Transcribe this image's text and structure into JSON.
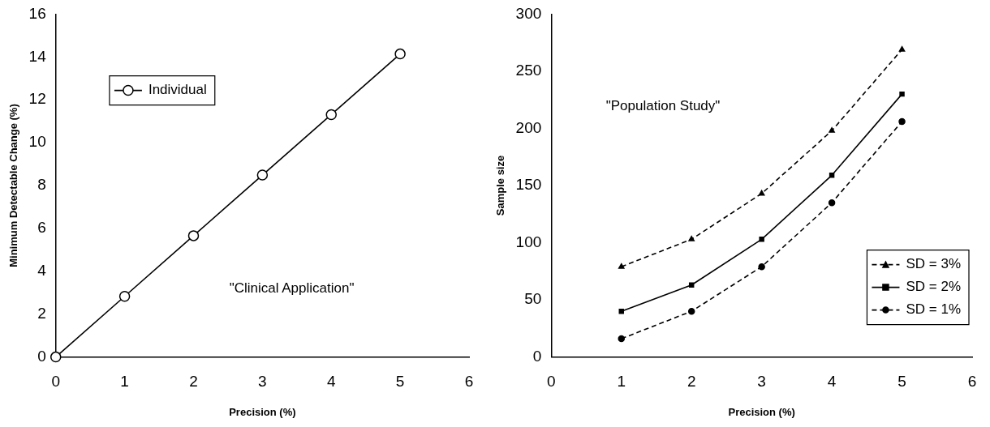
{
  "chart_data": [
    {
      "type": "line",
      "xlabel": "Precision (%)",
      "ylabel": "Minimum Detectable Change (%)",
      "x": [
        0,
        1,
        2,
        3,
        4,
        5
      ],
      "series": [
        {
          "name": "Individual",
          "color": "#000000",
          "values": [
            0,
            2.83,
            5.66,
            8.49,
            11.31,
            14.14
          ],
          "marker": "circle",
          "line_style": "solid"
        }
      ],
      "xlim": [
        0,
        6
      ],
      "xticks": [
        0,
        1,
        2,
        3,
        4,
        5,
        6
      ],
      "ylim": [
        0,
        16
      ],
      "yticks": [
        0,
        2,
        4,
        6,
        8,
        10,
        12,
        14,
        16
      ],
      "grid": false,
      "legend": "top left",
      "annotations": [
        "\"Clinical Application\""
      ]
    },
    {
      "type": "line",
      "xlabel": "Precision (%)",
      "ylabel": "Sample size",
      "x": [
        1,
        2,
        3,
        4,
        5
      ],
      "series": [
        {
          "name": "SD = 3%",
          "color": "#000000",
          "values": [
            79,
            103,
            143,
            198,
            269
          ],
          "marker": "triangle",
          "line_style": "dashed"
        },
        {
          "name": "SD = 2%",
          "color": "#000000",
          "values": [
            40,
            63,
            103,
            159,
            230
          ],
          "marker": "square",
          "line_style": "solid"
        },
        {
          "name": "SD = 1%",
          "color": "#000000",
          "values": [
            16,
            40,
            79,
            135,
            206
          ],
          "marker": "circle",
          "line_style": "dashed"
        }
      ],
      "xlim": [
        0,
        6
      ],
      "xticks": [
        0,
        1,
        2,
        3,
        4,
        5,
        6
      ],
      "ylim": [
        0,
        300
      ],
      "yticks": [
        0,
        50,
        100,
        150,
        200,
        250,
        300
      ],
      "grid": false,
      "legend": "bottom right",
      "annotations": [
        "\"Population Study\""
      ]
    }
  ]
}
